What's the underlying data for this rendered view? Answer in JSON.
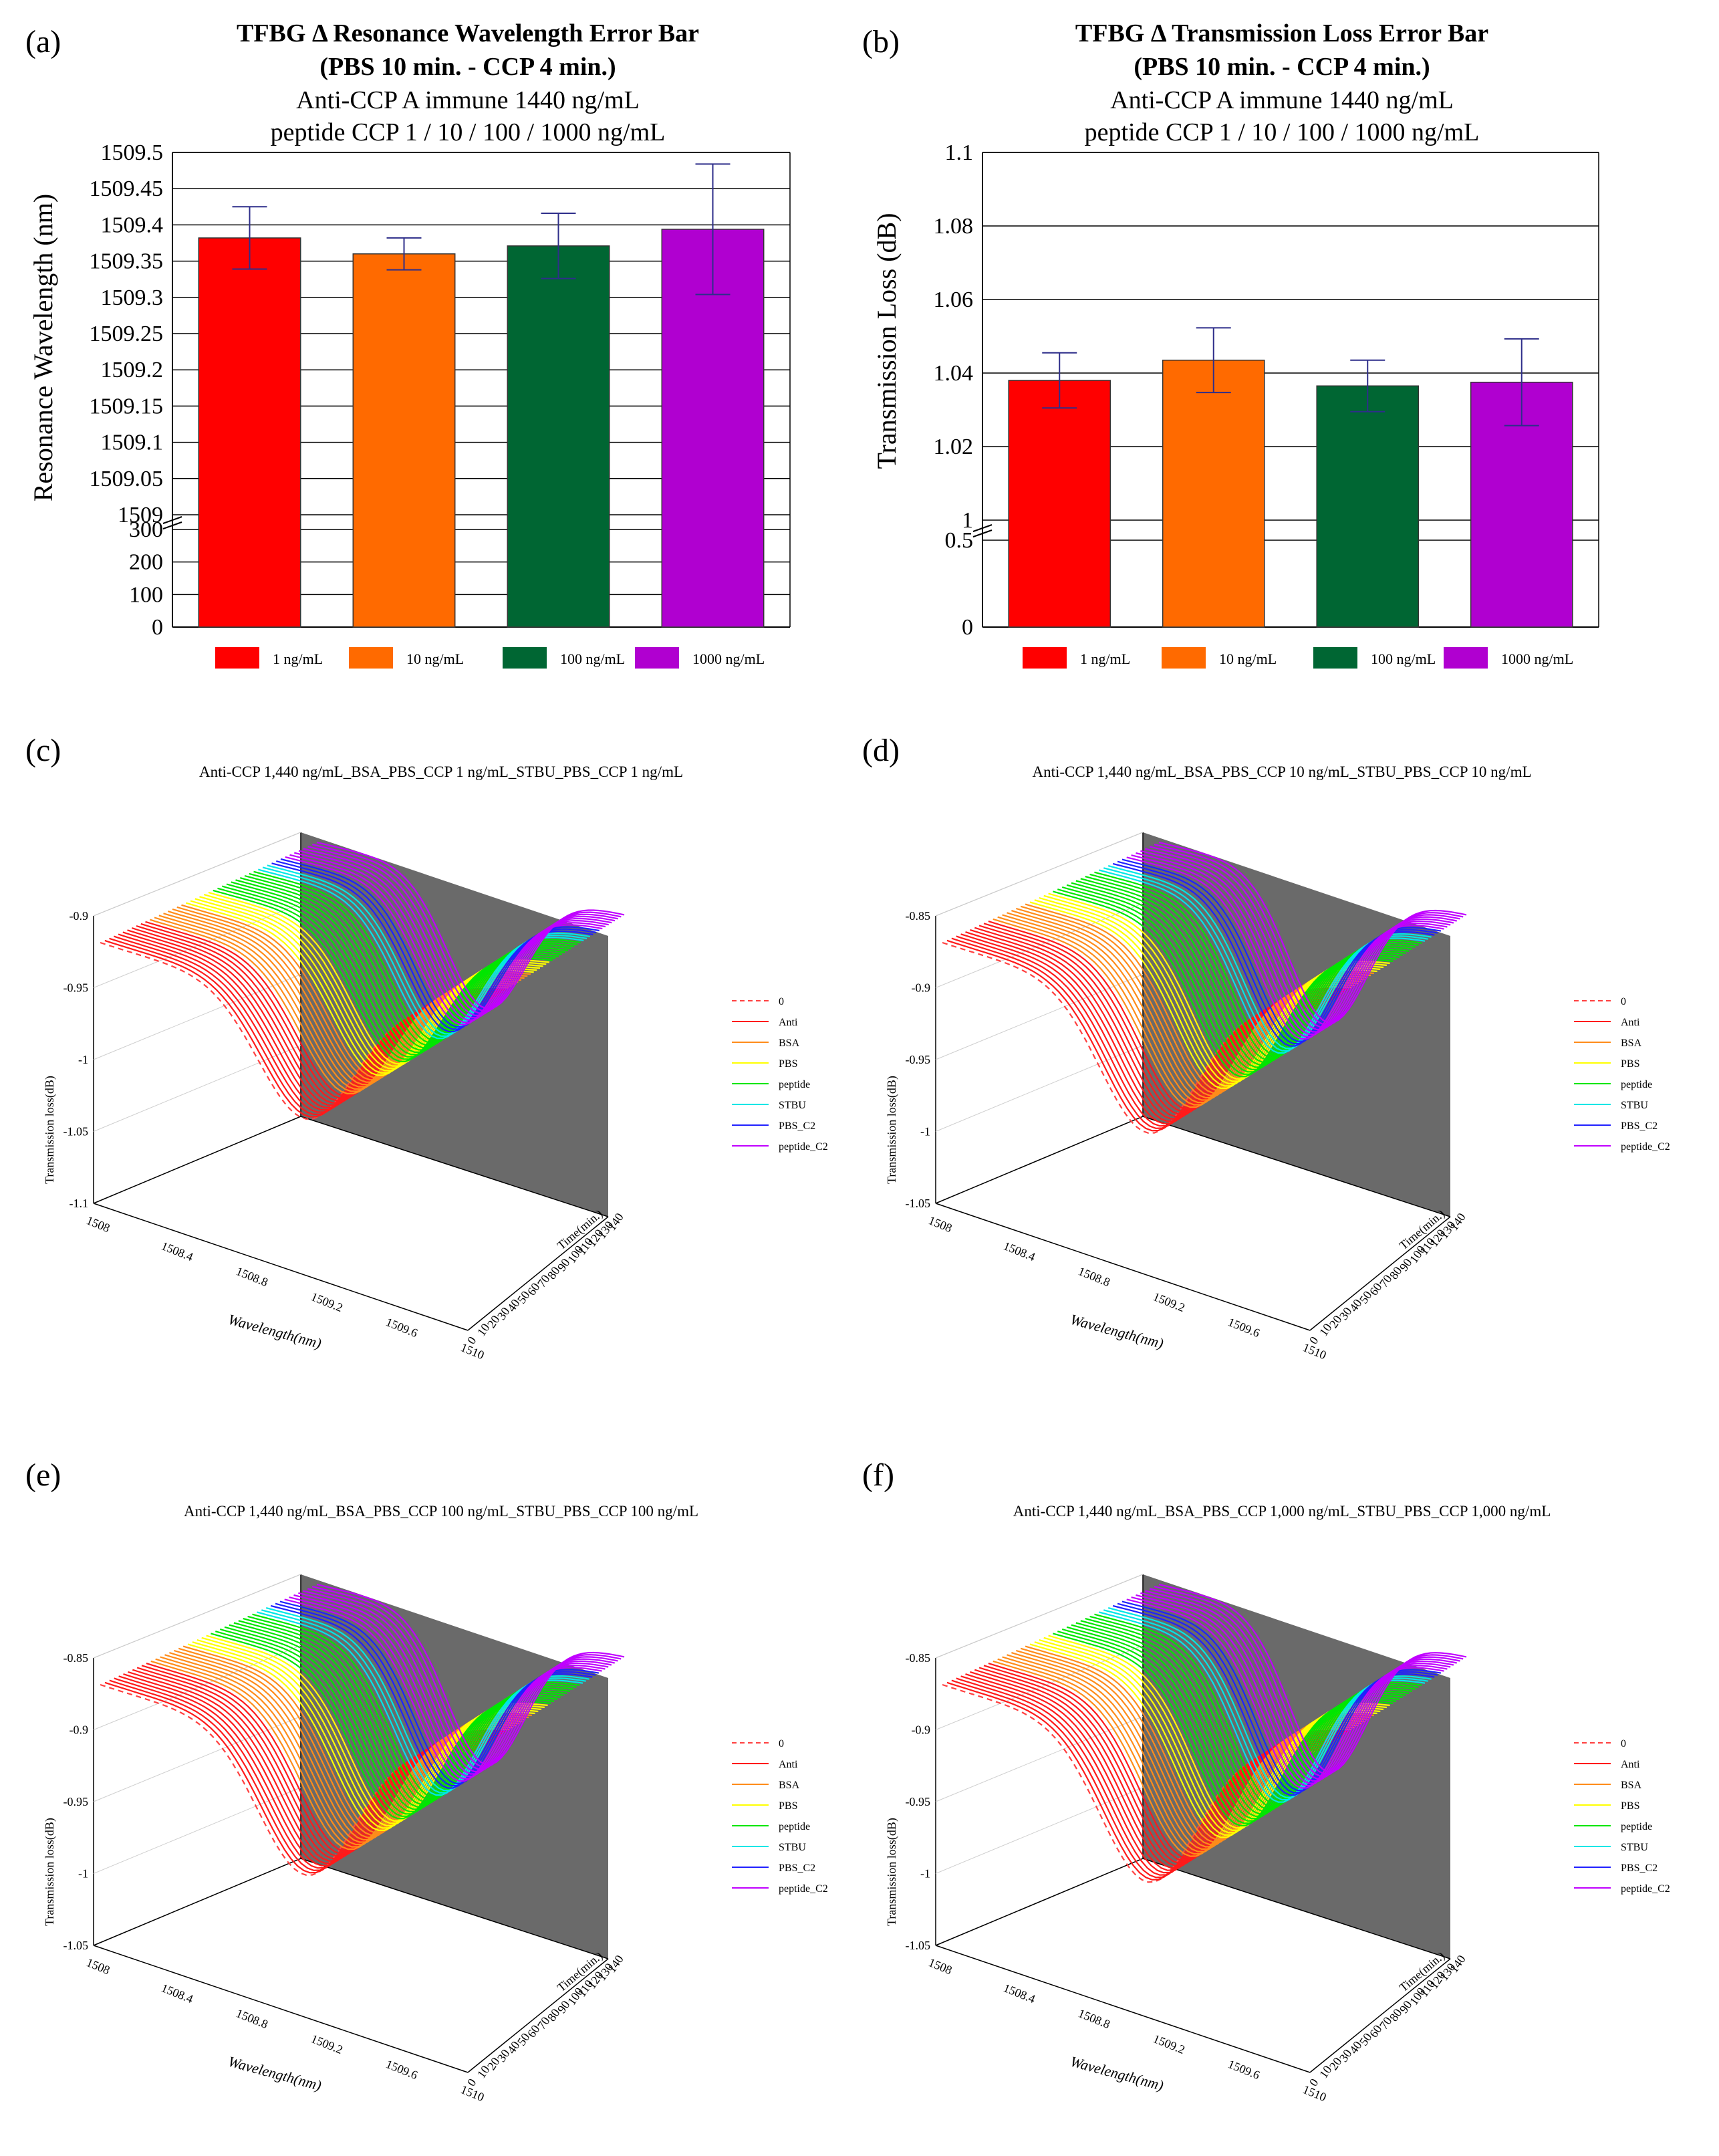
{
  "figure": {
    "panels": {
      "a": "(a)",
      "b": "(b)",
      "c": "(c)",
      "d": "(d)",
      "e": "(e)",
      "f": "(f)"
    }
  },
  "chart_data": [
    {
      "id": "a",
      "type": "bar",
      "title": "TFBG Δ Resonance Wavelength Error Bar",
      "title2": "(PBS 10 min. - CCP 4 min.)",
      "subtitle1": "Anti-CCP A immune 1440 ng/mL",
      "subtitle2": "peptide CCP 1 / 10 / 100 / 1000 ng/mL",
      "ylabel": "Resonance Wavelength (nm)",
      "categories": [
        "1 ng/mL",
        "10 ng/mL",
        "100 ng/mL",
        "1000 ng/mL"
      ],
      "values": [
        1509.382,
        1509.36,
        1509.371,
        1509.394
      ],
      "errors": [
        0.043,
        0.022,
        0.045,
        0.09
      ],
      "colors": [
        "#ff0000",
        "#ff6a00",
        "#006633",
        "#b000d0"
      ],
      "upper_ylim": [
        1509,
        1509.5
      ],
      "upper_ticks": [
        "1509.5",
        "1509.45",
        "1509.4",
        "1509.35",
        "1509.3",
        "1509.25",
        "1509.2",
        "1509.15",
        "1509.1",
        "1509.05",
        "1509"
      ],
      "lower_ylim": [
        0,
        300
      ],
      "lower_ticks": [
        "300",
        "200",
        "100",
        "0"
      ]
    },
    {
      "id": "b",
      "type": "bar",
      "title": "TFBG Δ Transmission Loss Error Bar",
      "title2": "(PBS 10 min. - CCP 4 min.)",
      "subtitle1": "Anti-CCP A immune 1440 ng/mL",
      "subtitle2": "peptide CCP 1 / 10 / 100 / 1000 ng/mL",
      "ylabel": "Transmission Loss (dB)",
      "categories": [
        "1 ng/mL",
        "10 ng/mL",
        "100 ng/mL",
        "1000 ng/mL"
      ],
      "values": [
        1.038,
        1.0435,
        1.0365,
        1.0375
      ],
      "errors": [
        0.0075,
        0.0088,
        0.007,
        0.0118
      ],
      "colors": [
        "#ff0000",
        "#ff6a00",
        "#006633",
        "#b000d0"
      ],
      "upper_ylim": [
        1,
        1.1
      ],
      "upper_ticks": [
        "1.1",
        "1.08",
        "1.06",
        "1.04",
        "1.02",
        "1"
      ],
      "lower_ylim": [
        0,
        0.5
      ],
      "lower_ticks": [
        "0.5",
        "0"
      ]
    },
    {
      "id": "c",
      "type": "line",
      "title": "Anti-CCP 1,440 ng/mL_BSA_PBS_CCP 1 ng/mL_STBU_PBS_CCP 1 ng/mL",
      "ylabel": "Transmission loss(dB)",
      "xlabel": "Wavelength(nm)",
      "zlabel": "Time(min.)",
      "z_ticks": [
        "-0.9",
        "-0.95",
        "-1",
        "-1.05",
        "-1.1"
      ],
      "x_ticks": [
        "1508",
        "1508.4",
        "1508.8",
        "1509.2",
        "1509.6",
        "1510"
      ],
      "t_ticks": [
        "0",
        "10",
        "20",
        "30",
        "40",
        "50",
        "60",
        "70",
        "80",
        "90",
        "100",
        "110",
        "120",
        "130",
        "140"
      ],
      "series": [
        "0",
        "Anti",
        "BSA",
        "PBS",
        "peptide",
        "STBU",
        "PBS_C2",
        "peptide_C2"
      ],
      "series_counts": [
        1,
        10,
        8,
        6,
        10,
        3,
        3,
        8
      ],
      "dip_depth": 0.9
    },
    {
      "id": "d",
      "type": "line",
      "title": "Anti-CCP 1,440 ng/mL_BSA_PBS_CCP 10 ng/mL_STBU_PBS_CCP 10 ng/mL",
      "ylabel": "Transmission loss(dB)",
      "xlabel": "Wavelength(nm)",
      "zlabel": "Time(min.)",
      "z_ticks": [
        "-0.85",
        "-0.9",
        "-0.95",
        "-1",
        "-1.05"
      ],
      "x_ticks": [
        "1508",
        "1508.4",
        "1508.8",
        "1509.2",
        "1509.6",
        "1510"
      ],
      "t_ticks": [
        "0",
        "10",
        "20",
        "30",
        "40",
        "50",
        "60",
        "70",
        "80",
        "90",
        "100",
        "110",
        "120",
        "130",
        "140"
      ],
      "series": [
        "0",
        "Anti",
        "BSA",
        "PBS",
        "peptide",
        "STBU",
        "PBS_C2",
        "peptide_C2"
      ],
      "series_counts": [
        1,
        10,
        8,
        5,
        10,
        3,
        3,
        8
      ],
      "dip_depth": 1.0
    },
    {
      "id": "e",
      "type": "line",
      "title": "Anti-CCP 1,440 ng/mL_BSA_PBS_CCP 100 ng/mL_STBU_PBS_CCP 100 ng/mL",
      "ylabel": "Transmission loss(dB)",
      "xlabel": "Wavelength(nm)",
      "zlabel": "Time(min.)",
      "z_ticks": [
        "-0.85",
        "-0.9",
        "-0.95",
        "-1",
        "-1.05"
      ],
      "x_ticks": [
        "1508",
        "1508.4",
        "1508.8",
        "1509.2",
        "1509.6",
        "1510"
      ],
      "t_ticks": [
        "0",
        "10",
        "20",
        "30",
        "40",
        "50",
        "60",
        "70",
        "80",
        "90",
        "100",
        "110",
        "120",
        "130",
        "140"
      ],
      "series": [
        "0",
        "Anti",
        "BSA",
        "PBS",
        "peptide",
        "STBU",
        "PBS_C2",
        "peptide_C2"
      ],
      "series_counts": [
        1,
        10,
        8,
        5,
        10,
        3,
        3,
        8
      ],
      "dip_depth": 1.0
    },
    {
      "id": "f",
      "type": "line",
      "title": "Anti-CCP 1,440 ng/mL_BSA_PBS_CCP 1,000 ng/mL_STBU_PBS_CCP 1,000 ng/mL",
      "ylabel": "Transmission loss(dB)",
      "xlabel": "Wavelength(nm)",
      "zlabel": "Time(min.)",
      "z_ticks": [
        "-0.85",
        "-0.9",
        "-0.95",
        "-1",
        "-1.05"
      ],
      "x_ticks": [
        "1508",
        "1508.4",
        "1508.8",
        "1509.2",
        "1509.6",
        "1510"
      ],
      "t_ticks": [
        "0",
        "10",
        "20",
        "30",
        "40",
        "50",
        "60",
        "70",
        "80",
        "90",
        "100",
        "110",
        "120",
        "130",
        "140"
      ],
      "series": [
        "0",
        "Anti",
        "BSA",
        "PBS",
        "peptide",
        "STBU",
        "PBS_C2",
        "peptide_C2"
      ],
      "series_counts": [
        1,
        10,
        8,
        5,
        10,
        3,
        3,
        8
      ],
      "dip_depth": 1.05
    }
  ],
  "series_colors": [
    "#ff4040",
    "#ff1a1a",
    "#ff8c1a",
    "#ffff00",
    "#00e600",
    "#00e6e6",
    "#2020ff",
    "#c000ff"
  ]
}
